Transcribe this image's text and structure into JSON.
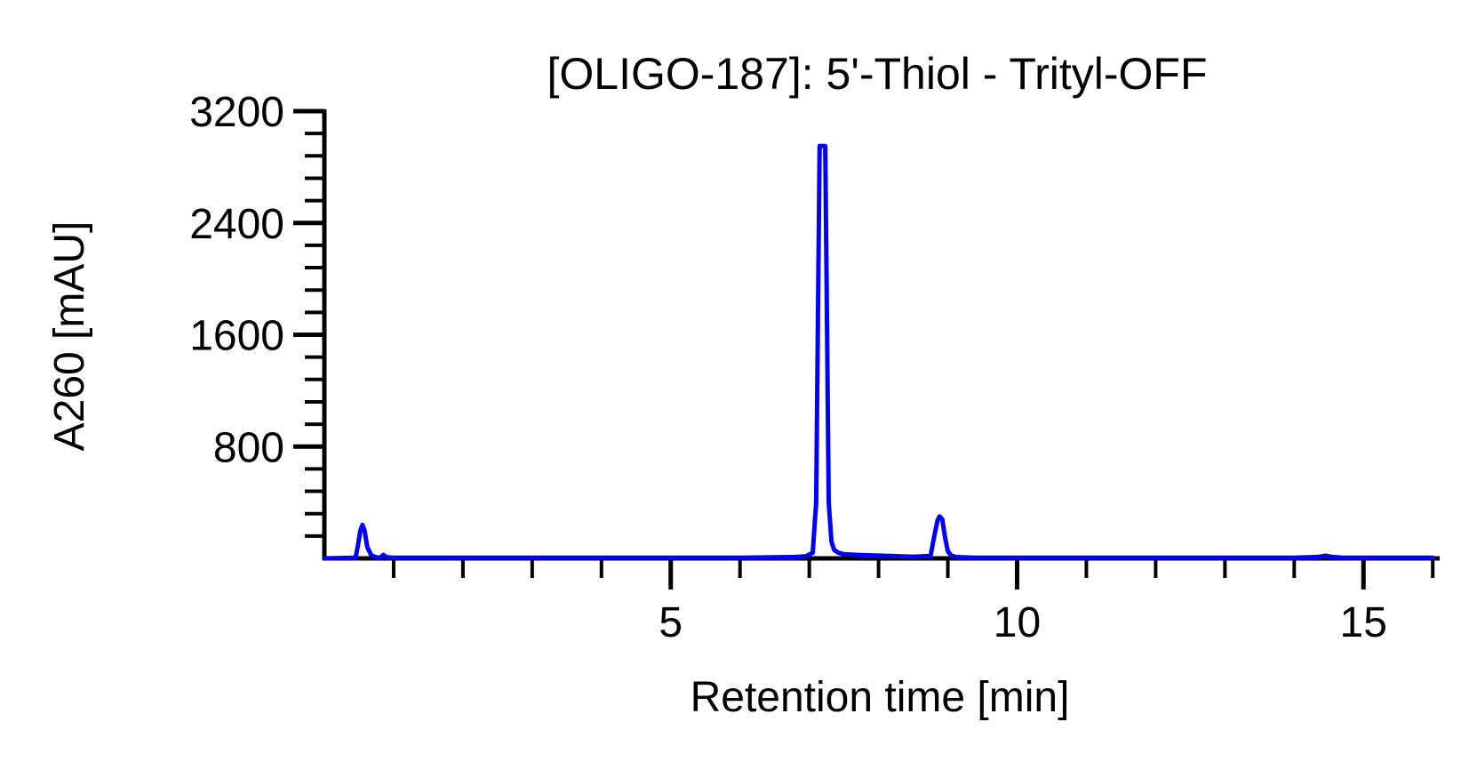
{
  "chart_data": {
    "type": "line",
    "title": "[OLIGO-187]: 5'-Thiol - Trityl-OFF",
    "xlabel": "Retention time [min]",
    "ylabel": "A260 [mAU]",
    "xlim": [
      0,
      16.1
    ],
    "ylim": [
      0,
      3200
    ],
    "x_major_ticks": [
      5,
      10,
      15
    ],
    "x_major_tick_labels": [
      "5",
      "10",
      "15"
    ],
    "x_minor_step": 1,
    "y_major_ticks": [
      800,
      1600,
      2400,
      3200
    ],
    "y_major_tick_labels": [
      "800",
      "1600",
      "2400",
      "3200"
    ],
    "y_minor_step": 160,
    "grid": false,
    "legend": "none",
    "series": [
      {
        "color": "#0000ff",
        "x": [
          0.0,
          0.45,
          0.48,
          0.52,
          0.55,
          0.58,
          0.62,
          0.68,
          0.75,
          0.8,
          0.85,
          0.9,
          1.0,
          2.0,
          3.0,
          4.0,
          5.0,
          6.0,
          6.8,
          6.95,
          7.05,
          7.1,
          7.13,
          7.15,
          7.18,
          7.2,
          7.23,
          7.25,
          7.28,
          7.32,
          7.36,
          7.42,
          7.5,
          7.7,
          8.0,
          8.5,
          8.75,
          8.8,
          8.85,
          8.88,
          8.92,
          8.96,
          9.0,
          9.05,
          9.12,
          9.2,
          9.4,
          10.0,
          12.0,
          14.0,
          14.35,
          14.45,
          14.55,
          14.7,
          15.0,
          16.0
        ],
        "values": [
          0,
          5,
          80,
          200,
          240,
          200,
          80,
          20,
          8,
          4,
          25,
          8,
          5,
          5,
          5,
          5,
          5,
          5,
          10,
          15,
          40,
          400,
          2000,
          2950,
          2950,
          2950,
          2950,
          2000,
          400,
          120,
          60,
          40,
          30,
          25,
          20,
          12,
          18,
          150,
          270,
          300,
          280,
          150,
          50,
          20,
          10,
          8,
          5,
          5,
          5,
          5,
          10,
          20,
          10,
          5,
          5,
          5
        ]
      }
    ]
  }
}
